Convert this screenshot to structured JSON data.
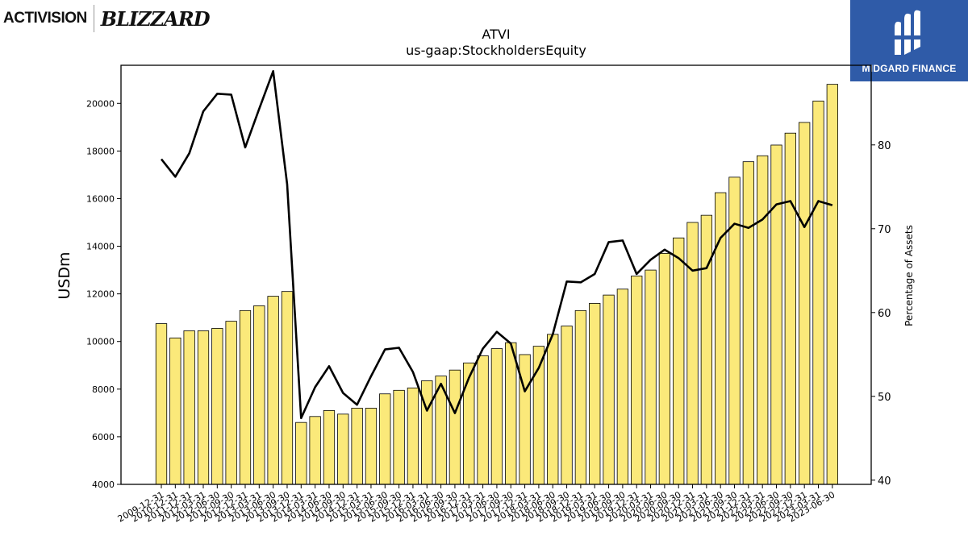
{
  "logos": {
    "left_brand_1": "ACTIVISION",
    "left_brand_2": "BLIZZARD",
    "right_brand": "MIDGARD FINANCE"
  },
  "chart_data": {
    "type": "bar",
    "title": "ATVI",
    "subtitle": "us-gaap:StockholdersEquity",
    "ylabel": "USDm",
    "y2label": "Percentage of Assets",
    "ylim": [
      4000,
      21600
    ],
    "y2lim": [
      39.5,
      89.5
    ],
    "yticks": [
      4000,
      6000,
      8000,
      10000,
      12000,
      14000,
      16000,
      18000,
      20000
    ],
    "y2ticks": [
      40,
      50,
      60,
      70,
      80
    ],
    "categories": [
      "2009-12-31",
      "2010-12-31",
      "2011-12-31",
      "2012-03-31",
      "2012-06-30",
      "2012-09-30",
      "2012-12-31",
      "2013-03-31",
      "2013-06-30",
      "2013-09-30",
      "2013-12-31",
      "2014-03-31",
      "2014-06-30",
      "2014-09-30",
      "2014-12-31",
      "2015-03-31",
      "2015-06-30",
      "2015-09-30",
      "2015-12-31",
      "2016-03-31",
      "2016-06-30",
      "2016-09-30",
      "2016-12-31",
      "2017-03-31",
      "2017-06-30",
      "2017-09-30",
      "2017-12-31",
      "2018-03-31",
      "2018-06-30",
      "2018-09-30",
      "2018-12-31",
      "2019-03-31",
      "2019-06-30",
      "2019-09-30",
      "2019-12-31",
      "2020-03-31",
      "2020-06-30",
      "2020-09-30",
      "2020-12-31",
      "2021-03-31",
      "2021-06-30",
      "2021-09-30",
      "2021-12-31",
      "2022-03-31",
      "2022-06-30",
      "2022-09-30",
      "2022-12-31",
      "2023-03-31",
      "2023-06-30"
    ],
    "series": [
      {
        "name": "StockholdersEquity",
        "type": "bar",
        "axis": "left",
        "color": "#fbe97a",
        "values": [
          10750,
          10150,
          10450,
          10450,
          10550,
          10850,
          11300,
          11500,
          11900,
          12100,
          6600,
          6850,
          7100,
          6950,
          7200,
          7200,
          7800,
          7950,
          8050,
          8350,
          8550,
          8800,
          9100,
          9400,
          9700,
          9950,
          9450,
          9800,
          10300,
          10650,
          11300,
          11600,
          11950,
          12200,
          12750,
          13000,
          13700,
          14350,
          15000,
          15300,
          16250,
          16900,
          17550,
          17800,
          18250,
          18750,
          19200,
          20100,
          20800
        ]
      },
      {
        "name": "Percentage of Assets",
        "type": "line",
        "axis": "right",
        "color": "#000000",
        "values": [
          78.3,
          76.2,
          79,
          84,
          86.1,
          86,
          79.7,
          84.3,
          88.8,
          75.3,
          47.4,
          51.1,
          53.6,
          50.4,
          49,
          52.4,
          55.6,
          55.8,
          52.9,
          48.3,
          51.5,
          48,
          52.2,
          55.7,
          57.7,
          56.3,
          50.6,
          53.4,
          57.4,
          63.7,
          63.6,
          64.6,
          68.4,
          68.6,
          64.6,
          66.3,
          67.5,
          66.5,
          65,
          65.3,
          68.9,
          70.6,
          70.1,
          71.1,
          72.9,
          73.3,
          70.2,
          73.3,
          72.8
        ]
      }
    ]
  }
}
